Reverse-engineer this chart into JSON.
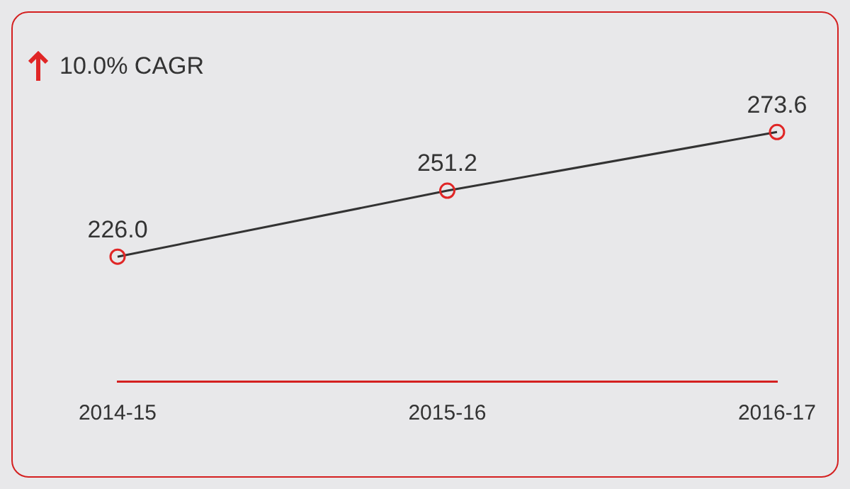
{
  "chart_data": {
    "type": "line",
    "categories": [
      "2014-15",
      "2015-16",
      "2016-17"
    ],
    "series": [
      {
        "color": "#333333",
        "colors": [
          "#e02626",
          "#e02626",
          "#e02626"
        ],
        "values": [
          226.0,
          251.2,
          273.6
        ],
        "value_labels": [
          "226.0",
          "251.2",
          "273.6"
        ]
      }
    ],
    "annotations": [
      "10.0% CAGR"
    ],
    "marker": "circle",
    "grid": false,
    "legend": false
  }
}
